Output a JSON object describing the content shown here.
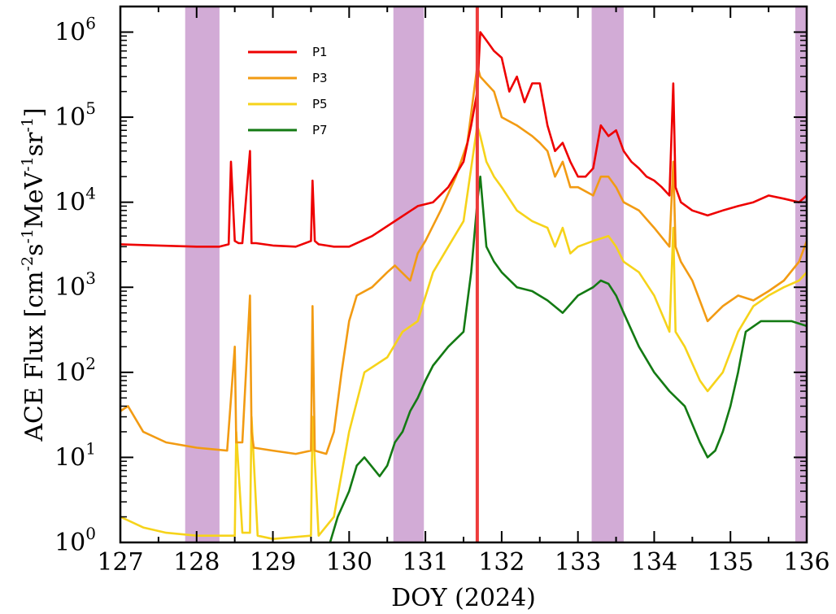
{
  "chart_data": {
    "type": "line",
    "xlabel": "DOY (2024)",
    "ylabel_parts": [
      "ACE Flux [cm",
      "-2",
      "s",
      "-1",
      "MeV",
      "-1",
      "sr",
      "-1",
      "]"
    ],
    "xlim": [
      127,
      136
    ],
    "ylim": [
      1,
      2000000
    ],
    "y_scale": "log",
    "x_ticks": [
      "127",
      "128",
      "129",
      "130",
      "131",
      "132",
      "133",
      "134",
      "135",
      "136"
    ],
    "y_ticks": [
      {
        "base": "10",
        "exp": "0",
        "value": 1
      },
      {
        "base": "10",
        "exp": "1",
        "value": 10
      },
      {
        "base": "10",
        "exp": "2",
        "value": 100
      },
      {
        "base": "10",
        "exp": "3",
        "value": 1000
      },
      {
        "base": "10",
        "exp": "4",
        "value": 10000
      },
      {
        "base": "10",
        "exp": "5",
        "value": 100000
      },
      {
        "base": "10",
        "exp": "6",
        "value": 1000000
      }
    ],
    "legend_position": "top-left",
    "shaded_bands": [
      {
        "x0": 127.85,
        "x1": 128.3,
        "color": "#c38fc8"
      },
      {
        "x0": 130.58,
        "x1": 130.98,
        "color": "#c38fc8"
      },
      {
        "x0": 133.18,
        "x1": 133.6,
        "color": "#c38fc8"
      },
      {
        "x0": 135.85,
        "x1": 136.0,
        "color": "#c38fc8"
      }
    ],
    "vertical_line": {
      "x": 131.68,
      "color": "#ee3b3b"
    },
    "series": [
      {
        "name": "P1",
        "color": "#ee0000",
        "x": [
          127.0,
          127.5,
          128.0,
          128.3,
          128.42,
          128.45,
          128.5,
          128.55,
          128.6,
          128.7,
          128.72,
          128.78,
          129.0,
          129.3,
          129.5,
          129.52,
          129.55,
          129.6,
          129.8,
          130.0,
          130.3,
          130.6,
          130.9,
          131.1,
          131.3,
          131.5,
          131.6,
          131.68,
          131.72,
          131.8,
          131.9,
          132.0,
          132.1,
          132.2,
          132.3,
          132.4,
          132.5,
          132.6,
          132.7,
          132.8,
          132.9,
          133.0,
          133.1,
          133.2,
          133.3,
          133.4,
          133.5,
          133.6,
          133.7,
          133.8,
          133.9,
          134.0,
          134.1,
          134.2,
          134.25,
          134.28,
          134.35,
          134.5,
          134.7,
          134.9,
          135.1,
          135.3,
          135.5,
          135.7,
          135.9,
          136.0
        ],
        "y": [
          3200,
          3100,
          3000,
          3000,
          3200,
          30000,
          3500,
          3300,
          3300,
          40000,
          3300,
          3300,
          3100,
          3000,
          3500,
          18000,
          3500,
          3200,
          3000,
          3000,
          4000,
          6000,
          9000,
          10000,
          15000,
          30000,
          80000,
          200000,
          1000000,
          800000,
          600000,
          500000,
          200000,
          300000,
          150000,
          250000,
          250000,
          80000,
          40000,
          50000,
          30000,
          20000,
          20000,
          25000,
          80000,
          60000,
          70000,
          40000,
          30000,
          25000,
          20000,
          18000,
          15000,
          12000,
          250000,
          15000,
          10000,
          8000,
          7000,
          8000,
          9000,
          10000,
          12000,
          11000,
          10000,
          12000
        ]
      },
      {
        "name": "P3",
        "color": "#f29b13",
        "x": [
          127.0,
          127.1,
          127.3,
          127.6,
          128.0,
          128.4,
          128.5,
          128.52,
          128.6,
          128.7,
          128.72,
          128.75,
          129.0,
          129.3,
          129.5,
          129.52,
          129.55,
          129.7,
          129.8,
          129.9,
          130.0,
          130.1,
          130.3,
          130.5,
          130.6,
          130.8,
          130.9,
          131.0,
          131.2,
          131.4,
          131.55,
          131.68,
          131.72,
          131.8,
          131.9,
          132.0,
          132.2,
          132.4,
          132.5,
          132.6,
          132.7,
          132.8,
          132.9,
          133.0,
          133.2,
          133.3,
          133.4,
          133.5,
          133.6,
          133.8,
          134.0,
          134.2,
          134.25,
          134.28,
          134.35,
          134.5,
          134.7,
          134.9,
          135.1,
          135.3,
          135.5,
          135.7,
          135.9,
          136.0
        ],
        "y": [
          35,
          40,
          20,
          15,
          13,
          12,
          200,
          15,
          15,
          800,
          20,
          13,
          12,
          11,
          12,
          600,
          12,
          11,
          20,
          100,
          400,
          800,
          1000,
          1500,
          1800,
          1200,
          2500,
          3500,
          8000,
          20000,
          50000,
          400000,
          300000,
          250000,
          200000,
          100000,
          80000,
          60000,
          50000,
          40000,
          20000,
          30000,
          15000,
          15000,
          12000,
          20000,
          20000,
          15000,
          10000,
          8000,
          5000,
          3000,
          30000,
          3000,
          2000,
          1200,
          400,
          600,
          800,
          700,
          900,
          1200,
          2000,
          3500
        ]
      },
      {
        "name": "P5",
        "color": "#f6d31a",
        "x": [
          127.0,
          127.3,
          127.6,
          128.0,
          128.5,
          128.52,
          128.6,
          128.7,
          128.72,
          128.8,
          129.0,
          129.5,
          129.52,
          129.6,
          129.8,
          130.0,
          130.2,
          130.5,
          130.7,
          130.9,
          131.1,
          131.3,
          131.5,
          131.68,
          131.72,
          131.8,
          131.9,
          132.0,
          132.2,
          132.4,
          132.6,
          132.7,
          132.8,
          132.9,
          133.0,
          133.2,
          133.4,
          133.5,
          133.6,
          133.8,
          134.0,
          134.2,
          134.25,
          134.28,
          134.4,
          134.6,
          134.7,
          134.9,
          135.1,
          135.3,
          135.5,
          135.7,
          135.9,
          136.0
        ],
        "y": [
          2,
          1.5,
          1.3,
          1.2,
          1.2,
          20,
          1.3,
          1.3,
          30,
          1.2,
          1.1,
          1.2,
          30,
          1.2,
          2,
          20,
          100,
          150,
          300,
          400,
          1500,
          3000,
          6000,
          80000,
          60000,
          30000,
          20000,
          15000,
          8000,
          6000,
          5000,
          3000,
          5000,
          2500,
          3000,
          3500,
          4000,
          3000,
          2000,
          1500,
          800,
          300,
          5000,
          300,
          200,
          80,
          60,
          100,
          300,
          600,
          800,
          1000,
          1200,
          1500
        ]
      },
      {
        "name": "P7",
        "color": "#137a13",
        "x": [
          129.75,
          129.85,
          130.0,
          130.1,
          130.2,
          130.4,
          130.5,
          130.6,
          130.7,
          130.8,
          130.9,
          131.0,
          131.1,
          131.3,
          131.5,
          131.6,
          131.68,
          131.72,
          131.8,
          131.9,
          132.0,
          132.2,
          132.4,
          132.6,
          132.8,
          133.0,
          133.2,
          133.3,
          133.4,
          133.5,
          133.6,
          133.8,
          134.0,
          134.2,
          134.4,
          134.6,
          134.7,
          134.8,
          134.9,
          135.0,
          135.1,
          135.2,
          135.4,
          135.6,
          135.8,
          136.0
        ],
        "y": [
          1,
          2,
          4,
          8,
          10,
          6,
          8,
          15,
          20,
          35,
          50,
          80,
          120,
          200,
          300,
          1500,
          10000,
          20000,
          3000,
          2000,
          1500,
          1000,
          900,
          700,
          500,
          800,
          1000,
          1200,
          1100,
          800,
          500,
          200,
          100,
          60,
          40,
          15,
          10,
          12,
          20,
          40,
          100,
          300,
          400,
          400,
          400,
          350
        ]
      }
    ]
  }
}
